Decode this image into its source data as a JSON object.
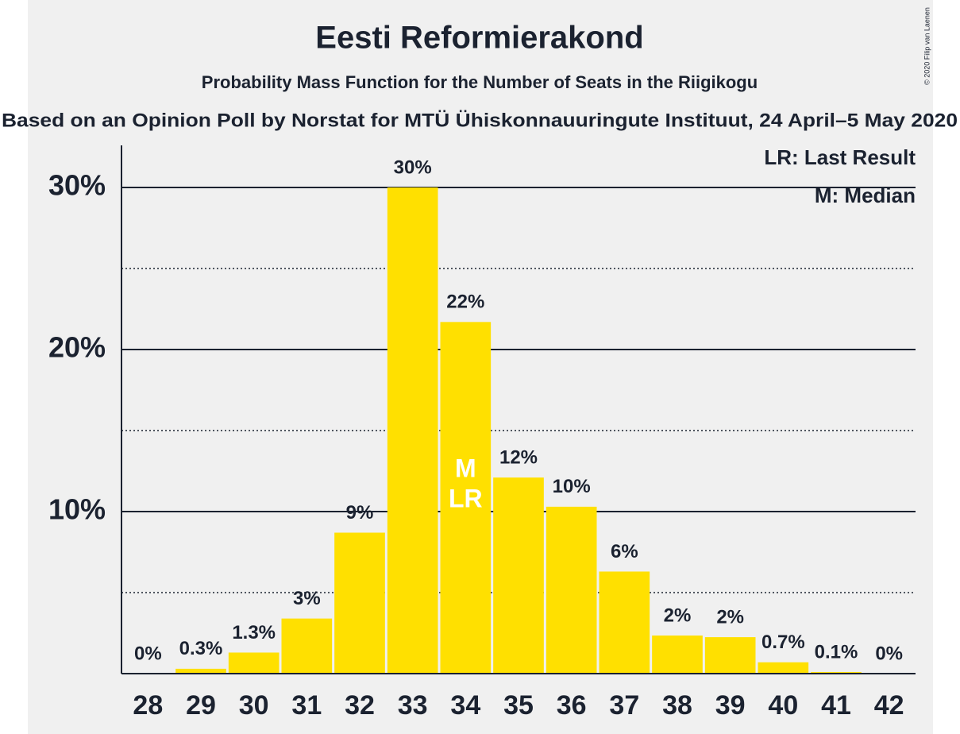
{
  "chart_data": {
    "type": "bar",
    "title": "Eesti Reformierakond",
    "subtitle": "Probability Mass Function for the Number of Seats in the Riigikogu",
    "caption": "Based on an Opinion Poll by Norstat for MTÜ Ühiskonnauuringute Instituut, 24 April–5 May 2020",
    "copyright": "© 2020 Filip van Laenen",
    "categories": [
      28,
      29,
      30,
      31,
      32,
      33,
      34,
      35,
      36,
      37,
      38,
      39,
      40,
      41,
      42
    ],
    "values": [
      0,
      0.3,
      1.3,
      3.4,
      8.7,
      30,
      21.7,
      12.1,
      10.3,
      6.3,
      2.35,
      2.25,
      0.7,
      0.1,
      0
    ],
    "value_labels": [
      "0%",
      "0.3%",
      "1.3%",
      "3%",
      "9%",
      "30%",
      "22%",
      "12%",
      "10%",
      "6%",
      "2%",
      "2%",
      "0.7%",
      "0.1%",
      "0%"
    ],
    "color": "#ffe000",
    "ylim": [
      0,
      32.6
    ],
    "yticks": [
      {
        "value": 10,
        "label": "10%"
      },
      {
        "value": 20,
        "label": "20%"
      },
      {
        "value": 30,
        "label": "30%"
      }
    ],
    "minor_gridlines": [
      5,
      15,
      25
    ],
    "grid": true,
    "annotations": [
      {
        "text": "M",
        "category": 34
      },
      {
        "text": "LR",
        "category": 34
      }
    ],
    "legend": [
      "LR: Last Result",
      "M: Median"
    ],
    "legend_position": "top-right"
  }
}
